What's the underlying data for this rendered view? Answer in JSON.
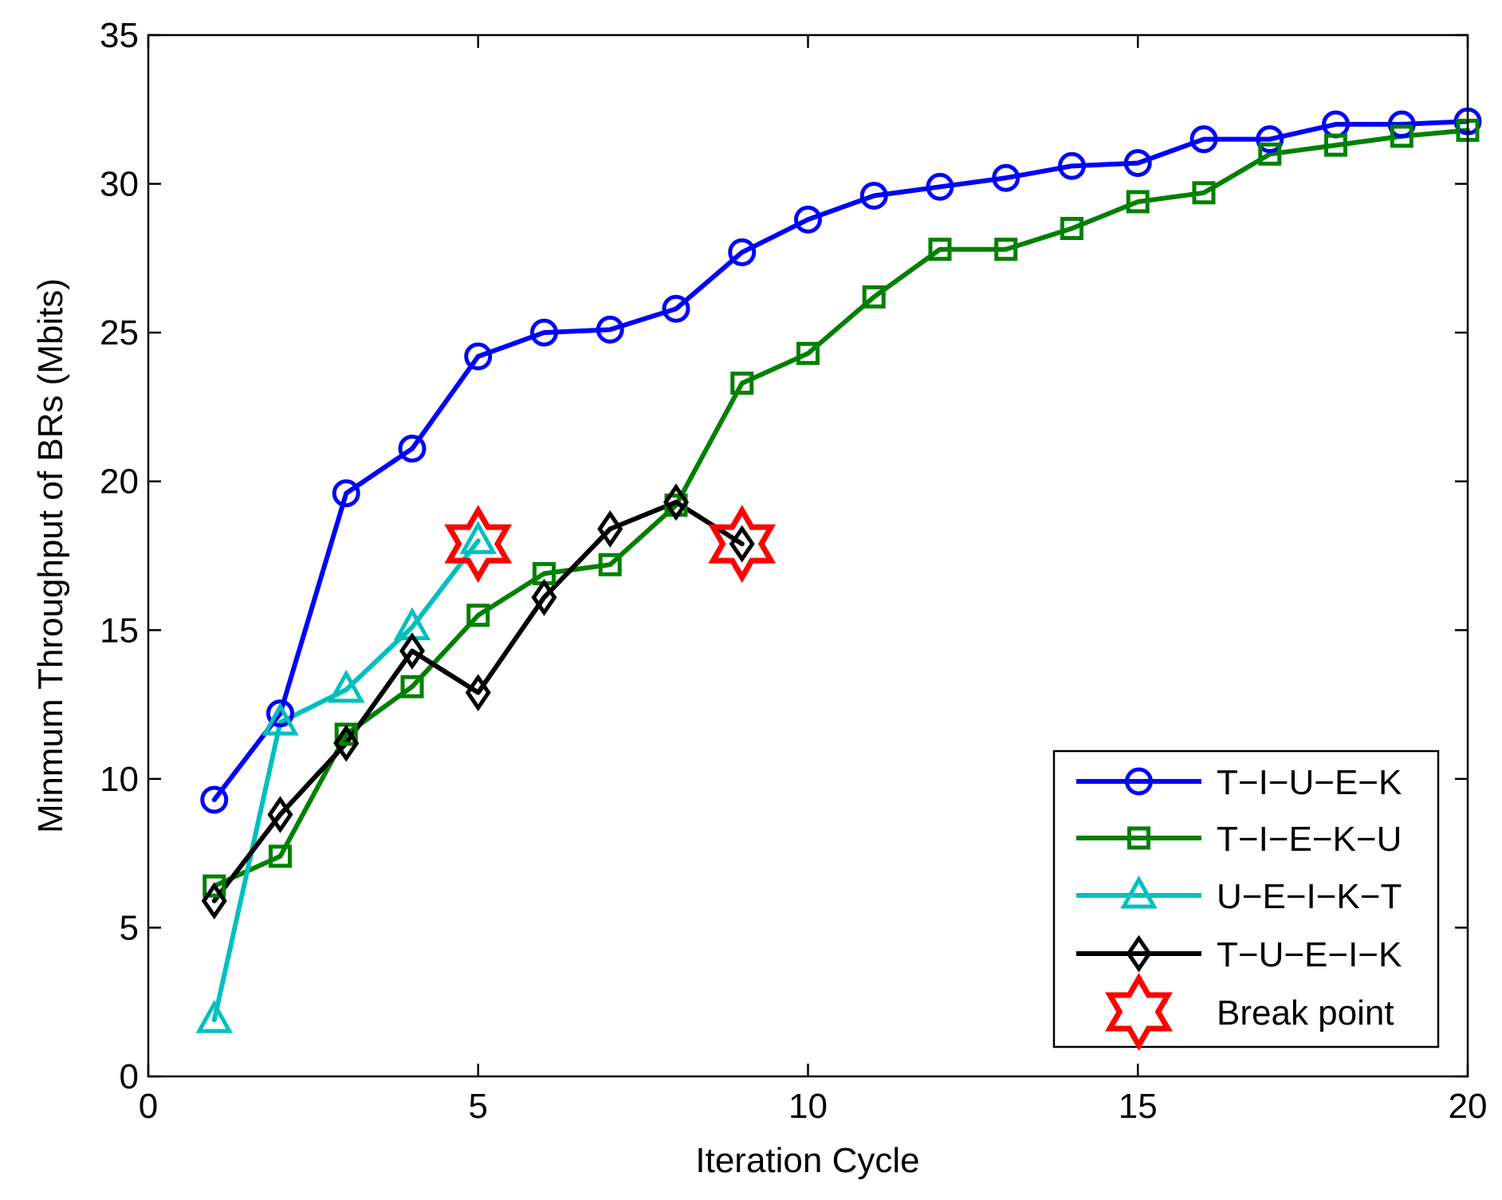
{
  "chart_data": {
    "type": "line",
    "title": "",
    "xlabel": "Iteration Cycle",
    "ylabel": "Minmum Throughput of BRs (Mbits)",
    "xlim": [
      0,
      20
    ],
    "ylim": [
      0,
      35
    ],
    "xticks": [
      "0",
      "5",
      "10",
      "15",
      "20"
    ],
    "yticks": [
      "0",
      "5",
      "10",
      "15",
      "20",
      "25",
      "30",
      "35"
    ],
    "grid": false,
    "legend_position": "bottom-right",
    "series": [
      {
        "name": "T−I−U−E−K",
        "color": "#0000ff",
        "marker": "circle",
        "x": [
          1,
          2,
          3,
          4,
          5,
          6,
          7,
          8,
          9,
          10,
          11,
          12,
          13,
          14,
          15,
          16,
          17,
          18,
          19,
          20
        ],
        "values": [
          9.3,
          12.2,
          19.6,
          21.1,
          24.2,
          25.0,
          25.1,
          25.8,
          27.7,
          28.8,
          29.6,
          29.9,
          30.2,
          30.6,
          30.7,
          31.5,
          31.5,
          32.0,
          32.0,
          32.1
        ]
      },
      {
        "name": "T−I−E−K−U",
        "color": "#008000",
        "marker": "square",
        "x": [
          1,
          2,
          3,
          4,
          5,
          6,
          7,
          8,
          9,
          10,
          11,
          12,
          13,
          14,
          15,
          16,
          17,
          18,
          19,
          20
        ],
        "values": [
          6.4,
          7.4,
          11.5,
          13.1,
          15.5,
          16.9,
          17.2,
          19.2,
          23.3,
          24.3,
          26.2,
          27.8,
          27.8,
          28.5,
          29.4,
          29.7,
          31.0,
          31.3,
          31.6,
          31.8
        ]
      },
      {
        "name": "U−E−I−K−T",
        "color": "#00bfbf",
        "marker": "triangle",
        "x": [
          1,
          2,
          3,
          4,
          5
        ],
        "values": [
          1.9,
          11.9,
          13.0,
          15.1,
          18.0
        ]
      },
      {
        "name": "T−U−E−I−K",
        "color": "#000000",
        "marker": "diamond",
        "x": [
          1,
          2,
          3,
          4,
          5,
          6,
          7,
          8,
          9
        ],
        "values": [
          5.9,
          8.8,
          11.2,
          14.3,
          12.9,
          16.1,
          18.4,
          19.3,
          17.9
        ]
      }
    ],
    "break_points": {
      "name": "Break point",
      "color": "#ff0000",
      "marker": "hexagram",
      "x": [
        5,
        9
      ],
      "values": [
        17.9,
        17.9
      ]
    }
  }
}
